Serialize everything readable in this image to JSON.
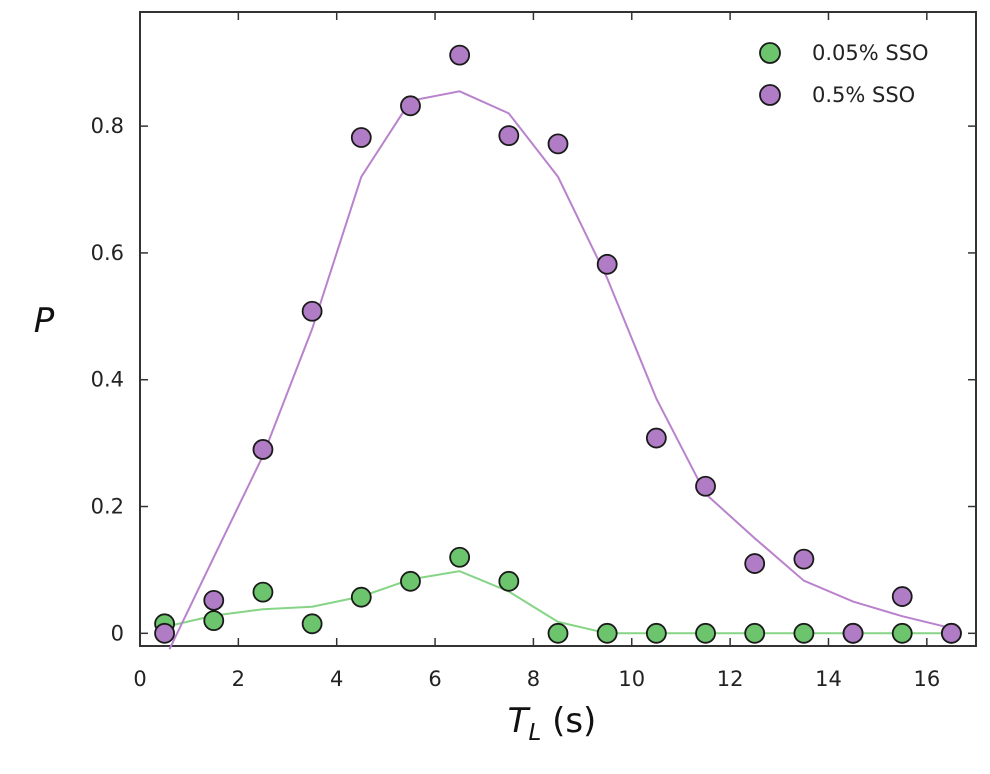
{
  "chart_data": {
    "type": "scatter",
    "xlabel_main": "T",
    "xlabel_sub": "L",
    "xlabel_unit": " (s)",
    "ylabel": "P",
    "xlim": [
      0,
      17
    ],
    "ylim": [
      -0.02,
      0.98
    ],
    "xticks": [
      0,
      2,
      4,
      6,
      8,
      10,
      12,
      14,
      16
    ],
    "yticks": [
      0,
      0.2,
      0.4,
      0.6,
      0.8
    ],
    "grid": false,
    "legend_position": "top-right",
    "series": [
      {
        "name": "0.05% SSO",
        "color": "#6cc46c",
        "line_color": "#86d486",
        "x": [
          0.5,
          1.5,
          2.5,
          3.5,
          4.5,
          5.5,
          6.5,
          7.5,
          8.5,
          9.5,
          10.5,
          11.5,
          12.5,
          13.5,
          14.5,
          15.5,
          16.5
        ],
        "y": [
          0.015,
          0.02,
          0.065,
          0.015,
          0.057,
          0.082,
          0.12,
          0.082,
          0.0,
          0.0,
          0.0,
          0.0,
          0.0,
          0.0,
          0.0,
          0.0,
          0.0
        ],
        "fit_x": [
          0.5,
          1.5,
          2.5,
          3.5,
          4.5,
          5.5,
          6.5,
          7.5,
          8.5,
          9.5,
          10.5,
          11.5,
          12.5,
          13.5,
          14.5,
          15.5,
          16.5
        ],
        "fit_y": [
          0.01,
          0.028,
          0.038,
          0.042,
          0.058,
          0.085,
          0.098,
          0.066,
          0.018,
          0.0,
          0.0,
          0.0,
          0.0,
          0.0,
          0.0,
          0.0,
          0.0
        ]
      },
      {
        "name": "0.5% SSO",
        "color": "#b07cc6",
        "line_color": "#b982cc",
        "x": [
          0.5,
          1.5,
          2.5,
          3.5,
          4.5,
          5.5,
          6.5,
          7.5,
          8.5,
          9.5,
          10.5,
          11.5,
          12.5,
          13.5,
          14.5,
          15.5,
          16.5
        ],
        "y": [
          0.0,
          0.052,
          0.29,
          0.508,
          0.782,
          0.832,
          0.912,
          0.785,
          0.772,
          0.582,
          0.308,
          0.232,
          0.11,
          0.117,
          0.0,
          0.058,
          0.0
        ],
        "fit_x": [
          0.6,
          1.5,
          2.5,
          3.5,
          4.5,
          5.5,
          6.5,
          7.5,
          8.5,
          9.5,
          10.5,
          11.5,
          12.5,
          13.5,
          14.5,
          15.5,
          16.5
        ],
        "fit_y": [
          -0.025,
          0.12,
          0.28,
          0.48,
          0.72,
          0.84,
          0.855,
          0.82,
          0.72,
          0.56,
          0.37,
          0.22,
          0.15,
          0.083,
          0.05,
          0.027,
          0.008
        ]
      }
    ]
  }
}
